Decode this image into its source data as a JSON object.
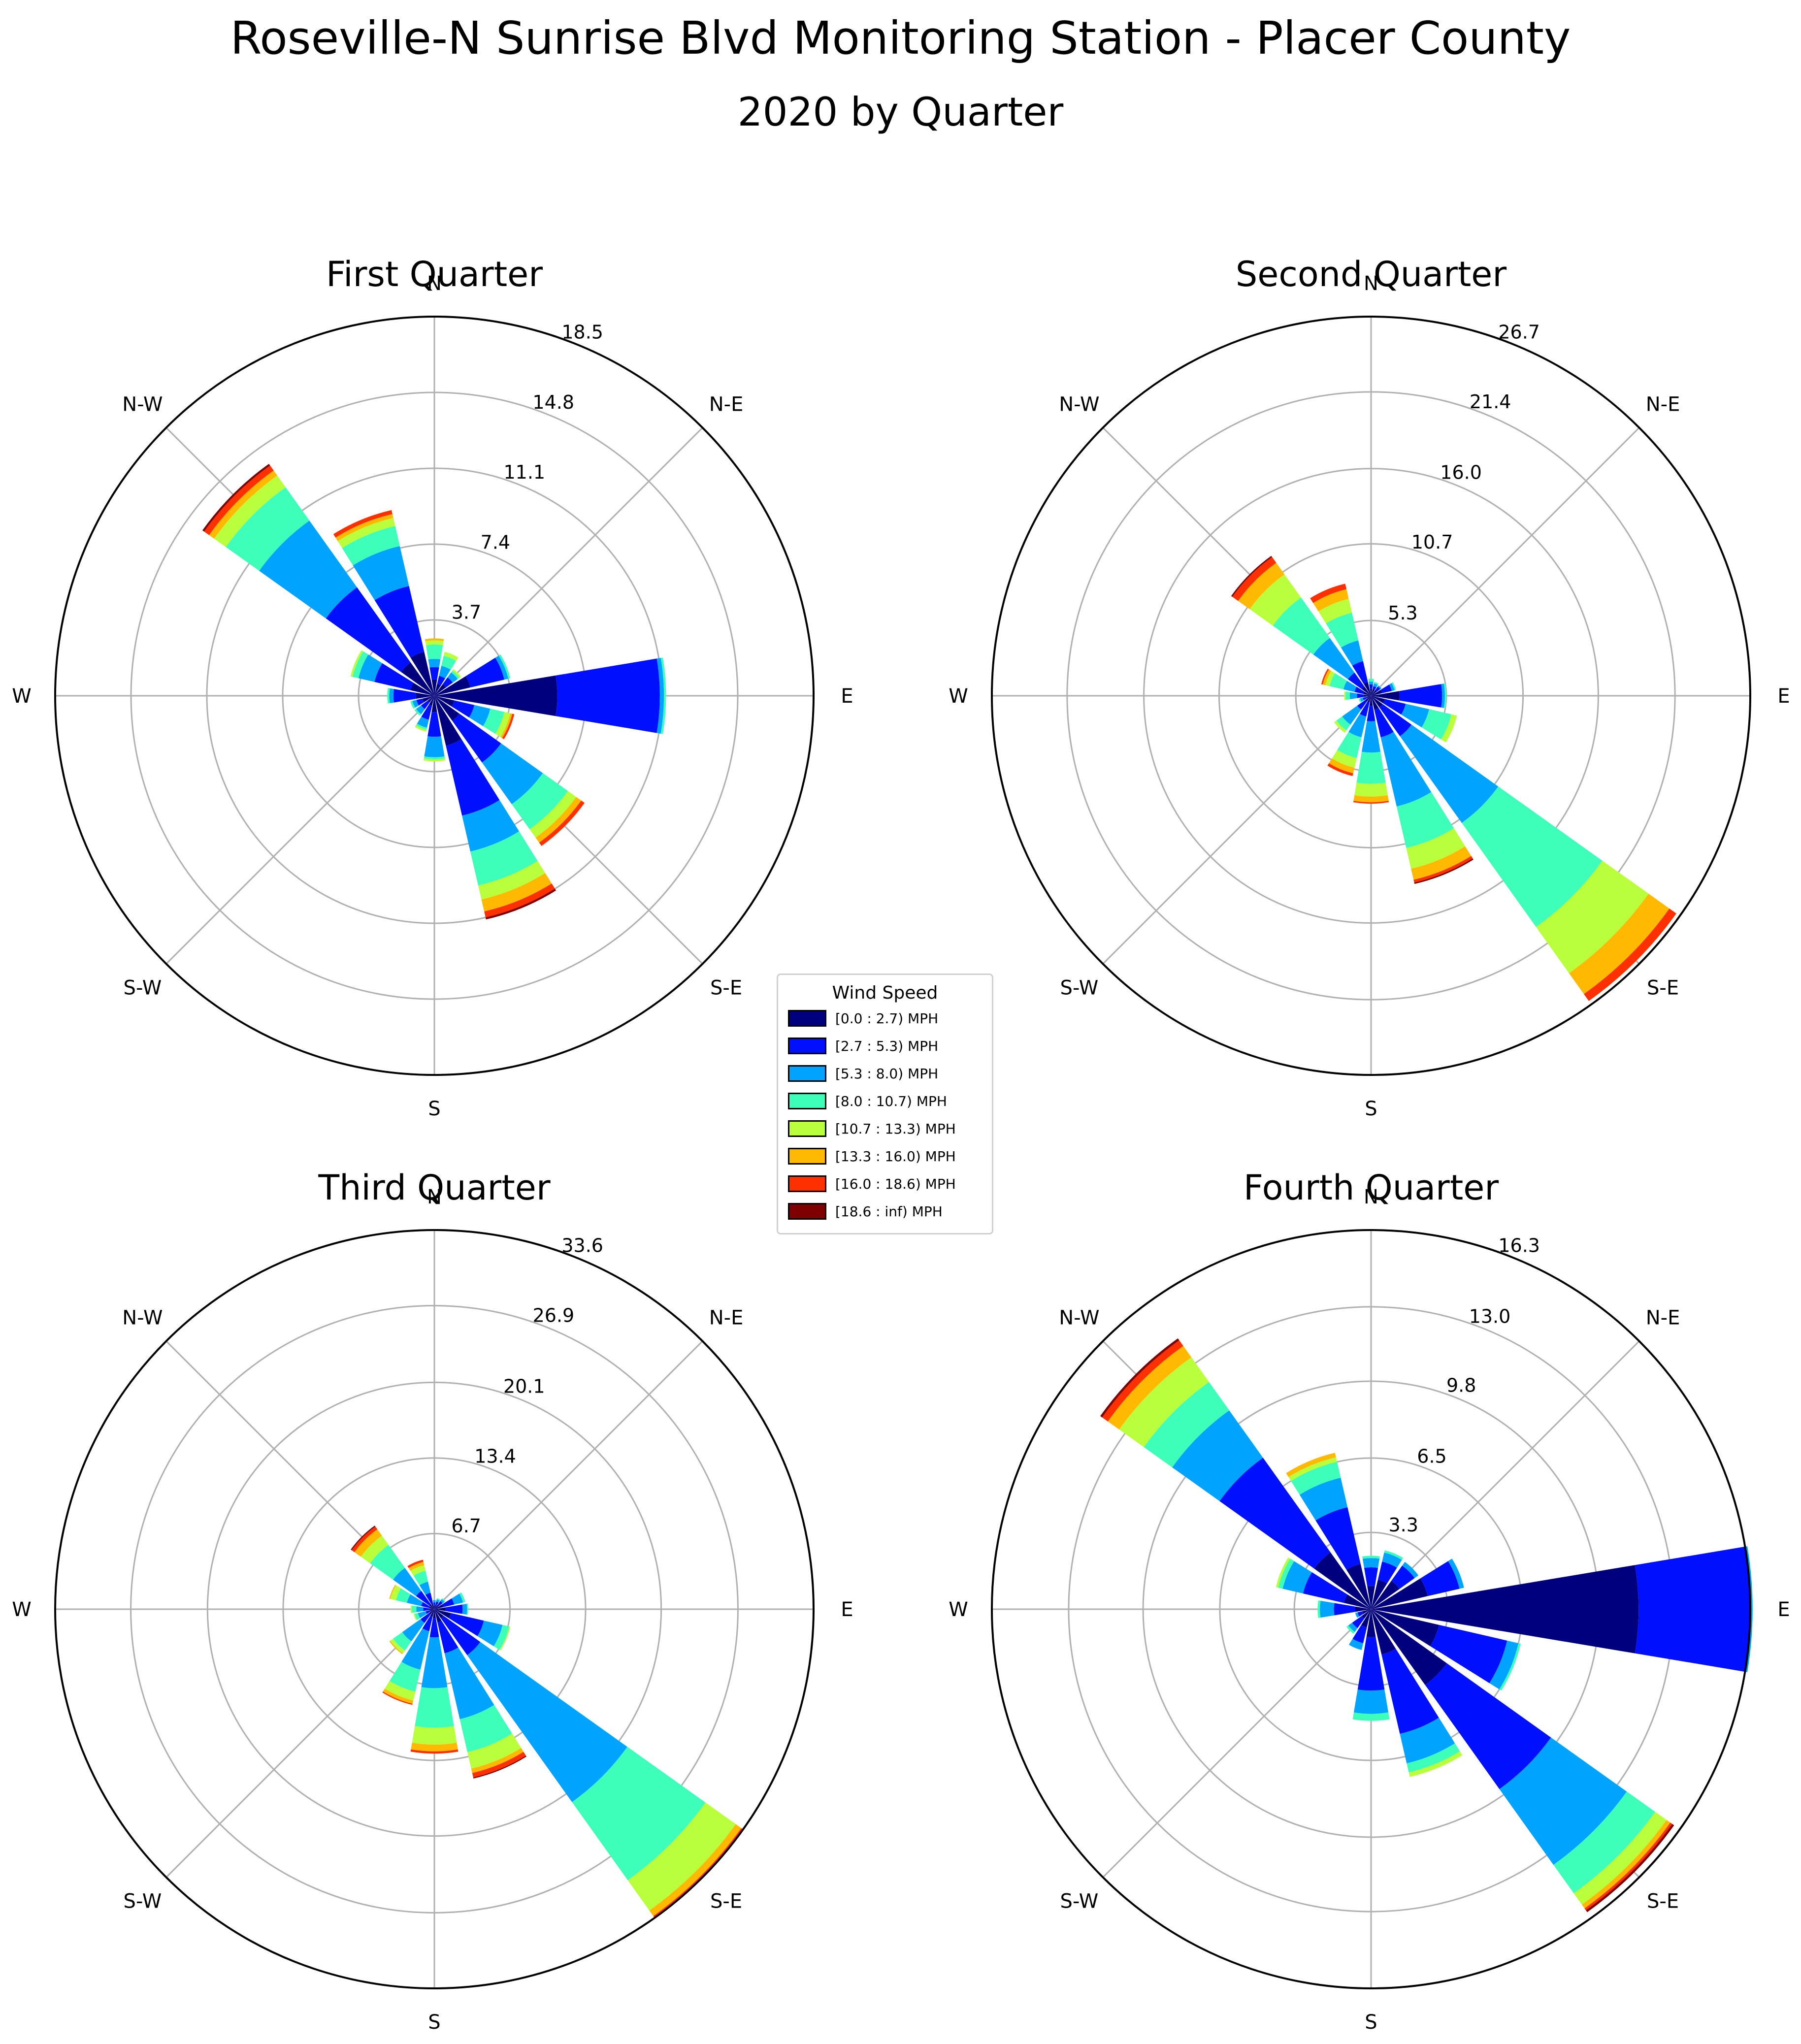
{
  "figure": {
    "title": "Roseville-N Sunrise Blvd Monitoring Station - Placer County",
    "subtitle": "2020 by Quarter"
  },
  "legend": {
    "title": "Wind Speed",
    "items": [
      {
        "label": "[0.0 : 2.7) MPH",
        "color": "#00007f"
      },
      {
        "label": "[2.7 : 5.3) MPH",
        "color": "#0010ff"
      },
      {
        "label": "[5.3 : 8.0) MPH",
        "color": "#00a4ff"
      },
      {
        "label": "[8.0 : 10.7) MPH",
        "color": "#3dffba"
      },
      {
        "label": "[10.7 : 13.3) MPH",
        "color": "#b9ff3c"
      },
      {
        "label": "[13.3 : 16.0) MPH",
        "color": "#ffb900"
      },
      {
        "label": "[16.0 : 18.6) MPH",
        "color": "#ff3000"
      },
      {
        "label": "[18.6 : inf) MPH",
        "color": "#7f0000"
      }
    ]
  },
  "chart_data": [
    {
      "type": "windrose",
      "title": "First Quarter",
      "rmax": 18.5,
      "tick_labels": [
        "3.7",
        "7.4",
        "11.1",
        "14.8",
        "18.5"
      ],
      "tick_values": [
        3.7,
        7.4,
        11.1,
        14.8,
        18.5
      ],
      "direction_labels": [
        "E",
        "N-E",
        "N",
        "N-W",
        "W",
        "S-W",
        "S",
        "S-E"
      ],
      "directions_deg": [
        0,
        22.5,
        45,
        67.5,
        90,
        112.5,
        135,
        157.5,
        180,
        202.5,
        225,
        247.5,
        270,
        292.5,
        315,
        337.5
      ],
      "speed_bins": [
        "[0.0 : 2.7) MPH",
        "[2.7 : 5.3) MPH",
        "[5.3 : 8.0) MPH",
        "[8.0 : 10.7) MPH",
        "[10.7 : 13.3) MPH",
        "[13.3 : 16.0) MPH",
        "[16.0 : 18.6) MPH",
        "[18.6 : inf) MPH"
      ],
      "bars": [
        [
          6.0,
          11.0,
          11.2,
          11.3,
          11.3,
          11.3,
          11.3,
          11.3
        ],
        [
          1.8,
          3.5,
          3.7,
          3.8,
          3.8,
          3.8,
          3.8,
          3.8
        ],
        [
          0.7,
          1.1,
          1.4,
          1.5,
          1.6,
          1.6,
          1.6,
          1.6
        ],
        [
          0.6,
          1.0,
          1.5,
          2.0,
          2.2,
          2.2,
          2.2,
          2.2
        ],
        [
          0.8,
          1.4,
          1.8,
          2.5,
          2.7,
          2.8,
          2.8,
          2.8
        ],
        [
          2.2,
          5.5,
          7.5,
          8.5,
          8.9,
          9.1,
          9.3,
          9.3
        ],
        [
          2.0,
          6.5,
          10.5,
          12.5,
          13.2,
          13.5,
          13.8,
          13.9
        ],
        [
          1.2,
          3.0,
          3.8,
          4.1,
          4.2,
          4.2,
          4.2,
          4.2
        ],
        [
          0.9,
          2.0,
          2.2,
          2.3,
          2.3,
          2.3,
          2.3,
          2.3
        ],
        [
          0.6,
          0.9,
          1.1,
          1.2,
          1.2,
          1.2,
          1.2,
          1.2
        ],
        [
          0.4,
          0.8,
          1.1,
          1.2,
          1.2,
          1.2,
          1.2,
          1.2
        ],
        [
          0.5,
          1.2,
          1.6,
          1.7,
          1.8,
          1.8,
          1.8,
          1.8
        ],
        [
          0.8,
          2.0,
          3.0,
          3.1,
          3.2,
          3.2,
          3.2,
          3.2
        ],
        [
          2.5,
          6.0,
          7.8,
          9.5,
          10.2,
          10.8,
          11.1,
          11.2
        ],
        [
          1.5,
          4.0,
          6.5,
          8.0,
          8.5,
          8.8,
          9.0,
          9.0
        ],
        [
          1.0,
          2.0,
          2.8,
          3.5,
          3.8,
          3.9,
          4.0,
          4.0
        ]
      ]
    },
    {
      "type": "windrose",
      "title": "Second Quarter",
      "rmax": 26.7,
      "tick_labels": [
        "5.3",
        "10.7",
        "16.0",
        "21.4",
        "26.7"
      ],
      "tick_values": [
        5.3,
        10.7,
        16.0,
        21.4,
        26.7
      ],
      "direction_labels": [
        "E",
        "N-E",
        "N",
        "N-W",
        "W",
        "S-W",
        "S",
        "S-E"
      ],
      "directions_deg": [
        0,
        22.5,
        45,
        67.5,
        90,
        112.5,
        135,
        157.5,
        180,
        202.5,
        225,
        247.5,
        270,
        292.5,
        315,
        337.5
      ],
      "speed_bins": [
        "[0.0 : 2.7) MPH",
        "[2.7 : 5.3) MPH",
        "[5.3 : 8.0) MPH",
        "[8.0 : 10.7) MPH",
        "[10.7 : 13.3) MPH",
        "[13.3 : 16.0) MPH",
        "[16.0 : 18.6) MPH",
        "[18.6 : inf) MPH"
      ],
      "bars": [
        [
          2.0,
          5.0,
          5.2,
          5.3,
          5.3,
          5.3,
          5.3,
          5.3
        ],
        [
          0.8,
          1.5,
          1.7,
          1.8,
          1.8,
          1.8,
          1.8,
          1.8
        ],
        [
          0.5,
          0.8,
          0.9,
          0.9,
          0.9,
          0.9,
          0.9,
          0.9
        ],
        [
          0.5,
          0.7,
          0.9,
          1.0,
          1.0,
          1.0,
          1.0,
          1.0
        ],
        [
          0.5,
          0.8,
          1.0,
          1.2,
          1.2,
          1.2,
          1.2,
          1.2
        ],
        [
          1.0,
          2.5,
          4.0,
          6.0,
          7.0,
          7.7,
          8.1,
          8.1
        ],
        [
          0.8,
          2.0,
          5.0,
          8.5,
          10.5,
          11.5,
          12.0,
          12.1
        ],
        [
          0.6,
          1.2,
          2.0,
          3.0,
          3.3,
          3.5,
          3.6,
          3.6
        ],
        [
          0.5,
          1.0,
          1.5,
          1.8,
          1.9,
          1.9,
          1.9,
          1.9
        ],
        [
          0.3,
          0.6,
          0.8,
          0.9,
          0.9,
          0.9,
          0.9,
          0.9
        ],
        [
          0.5,
          1.2,
          2.5,
          3.0,
          3.2,
          3.2,
          3.2,
          3.2
        ],
        [
          0.5,
          1.5,
          3.0,
          4.5,
          5.2,
          5.6,
          5.8,
          5.8
        ],
        [
          0.7,
          1.8,
          4.0,
          6.2,
          7.1,
          7.5,
          7.6,
          7.6
        ],
        [
          1.0,
          3.0,
          8.0,
          11.0,
          12.5,
          13.3,
          13.5,
          13.6
        ],
        [
          1.0,
          3.5,
          11.0,
          20.0,
          24.0,
          25.8,
          26.4,
          26.4
        ],
        [
          1.0,
          2.5,
          4.2,
          5.8,
          6.2,
          6.2,
          6.2,
          6.2
        ]
      ]
    },
    {
      "type": "windrose",
      "title": "Third Quarter",
      "rmax": 33.6,
      "tick_labels": [
        "6.7",
        "13.4",
        "20.1",
        "26.9",
        "33.6"
      ],
      "tick_values": [
        6.7,
        13.4,
        20.1,
        26.9,
        33.6
      ],
      "direction_labels": [
        "E",
        "N-E",
        "N",
        "N-W",
        "W",
        "S-W",
        "S",
        "S-E"
      ],
      "directions_deg": [
        0,
        22.5,
        45,
        67.5,
        90,
        112.5,
        135,
        157.5,
        180,
        202.5,
        225,
        247.5,
        270,
        292.5,
        315,
        337.5
      ],
      "speed_bins": [
        "[0.0 : 2.7) MPH",
        "[2.7 : 5.3) MPH",
        "[5.3 : 8.0) MPH",
        "[8.0 : 10.7) MPH",
        "[10.7 : 13.3) MPH",
        "[13.3 : 16.0) MPH",
        "[16.0 : 18.6) MPH",
        "[18.6 : inf) MPH"
      ],
      "bars": [
        [
          1.0,
          2.5,
          2.9,
          3.0,
          3.0,
          3.0,
          3.0,
          3.0
        ],
        [
          0.8,
          1.8,
          2.6,
          2.8,
          2.8,
          2.8,
          2.8,
          2.8
        ],
        [
          0.5,
          0.9,
          1.1,
          1.2,
          1.2,
          1.2,
          1.2,
          1.2
        ],
        [
          0.4,
          0.7,
          0.9,
          1.0,
          1.0,
          1.0,
          1.0,
          1.0
        ],
        [
          0.3,
          0.6,
          0.8,
          0.8,
          0.8,
          0.8,
          0.8,
          0.8
        ],
        [
          0.5,
          1.5,
          2.5,
          3.5,
          4.0,
          4.3,
          4.5,
          4.5
        ],
        [
          0.6,
          2.0,
          4.5,
          7.0,
          8.0,
          8.7,
          9.0,
          9.1
        ],
        [
          0.5,
          1.2,
          2.5,
          3.5,
          4.0,
          4.1,
          4.1,
          4.1
        ],
        [
          0.5,
          1.0,
          1.6,
          2.0,
          2.1,
          2.1,
          2.1,
          2.1
        ],
        [
          0.4,
          0.8,
          1.5,
          1.8,
          1.9,
          1.9,
          1.9,
          1.9
        ],
        [
          0.6,
          1.5,
          3.5,
          4.5,
          4.8,
          4.9,
          4.9,
          4.9
        ],
        [
          0.7,
          2.0,
          5.5,
          7.5,
          8.3,
          8.6,
          8.7,
          8.7
        ],
        [
          0.8,
          2.5,
          7.0,
          10.5,
          12.0,
          12.6,
          12.8,
          12.8
        ],
        [
          1.2,
          4.0,
          10.0,
          13.0,
          14.5,
          14.9,
          15.3,
          15.4
        ],
        [
          1.0,
          5.0,
          21.0,
          29.5,
          32.8,
          33.4,
          33.6,
          33.6
        ],
        [
          1.5,
          4.5,
          6.2,
          6.8,
          6.9,
          6.9,
          6.9,
          6.9
        ]
      ]
    },
    {
      "type": "windrose",
      "title": "Fourth Quarter",
      "rmax": 16.3,
      "tick_labels": [
        "3.3",
        "6.5",
        "9.8",
        "13.0",
        "16.3"
      ],
      "tick_values": [
        3.3,
        6.5,
        9.8,
        13.0,
        16.3
      ],
      "direction_labels": [
        "E",
        "N-E",
        "N",
        "N-W",
        "W",
        "S-W",
        "S",
        "S-E"
      ],
      "directions_deg": [
        0,
        22.5,
        45,
        67.5,
        90,
        112.5,
        135,
        157.5,
        180,
        202.5,
        225,
        247.5,
        270,
        292.5,
        315,
        337.5
      ],
      "speed_bins": [
        "[0.0 : 2.7) MPH",
        "[2.7 : 5.3) MPH",
        "[5.3 : 8.0) MPH",
        "[8.0 : 10.7) MPH",
        "[10.7 : 13.3) MPH",
        "[13.3 : 16.0) MPH",
        "[16.0 : 18.6) MPH",
        "[18.6 : inf) MPH"
      ],
      "bars": [
        [
          11.5,
          16.3,
          16.4,
          16.4,
          16.4,
          16.4,
          16.4,
          16.4
        ],
        [
          2.5,
          3.9,
          4.1,
          4.1,
          4.1,
          4.1,
          4.1,
          4.1
        ],
        [
          1.5,
          2.3,
          2.5,
          2.5,
          2.5,
          2.5,
          2.5,
          2.5
        ],
        [
          1.3,
          2.1,
          2.5,
          2.6,
          2.6,
          2.6,
          2.6,
          2.6
        ],
        [
          1.0,
          1.8,
          2.2,
          2.3,
          2.3,
          2.3,
          2.3,
          2.3
        ],
        [
          2.0,
          4.5,
          5.8,
          6.5,
          6.7,
          6.9,
          6.9,
          6.9
        ],
        [
          3.0,
          8.0,
          10.5,
          12.0,
          13.3,
          13.9,
          14.2,
          14.3
        ],
        [
          1.2,
          3.0,
          3.9,
          4.1,
          4.2,
          4.2,
          4.2,
          4.2
        ],
        [
          0.7,
          1.6,
          2.2,
          2.3,
          2.3,
          2.3,
          2.3,
          2.3
        ],
        [
          0.4,
          0.6,
          0.7,
          0.7,
          0.7,
          0.7,
          0.7,
          0.7
        ],
        [
          0.5,
          1.0,
          1.2,
          1.3,
          1.3,
          1.3,
          1.3,
          1.3
        ],
        [
          0.8,
          1.5,
          1.8,
          1.8,
          1.8,
          1.8,
          1.8,
          1.8
        ],
        [
          1.2,
          3.5,
          4.5,
          4.8,
          4.8,
          4.8,
          4.8,
          4.8
        ],
        [
          2.0,
          5.5,
          6.8,
          7.2,
          7.4,
          7.4,
          7.4,
          7.4
        ],
        [
          4.0,
          9.5,
          13.5,
          15.0,
          15.6,
          15.8,
          15.9,
          16.0
        ],
        [
          3.0,
          6.0,
          6.5,
          6.6,
          6.6,
          6.6,
          6.6,
          6.6
        ]
      ]
    }
  ]
}
